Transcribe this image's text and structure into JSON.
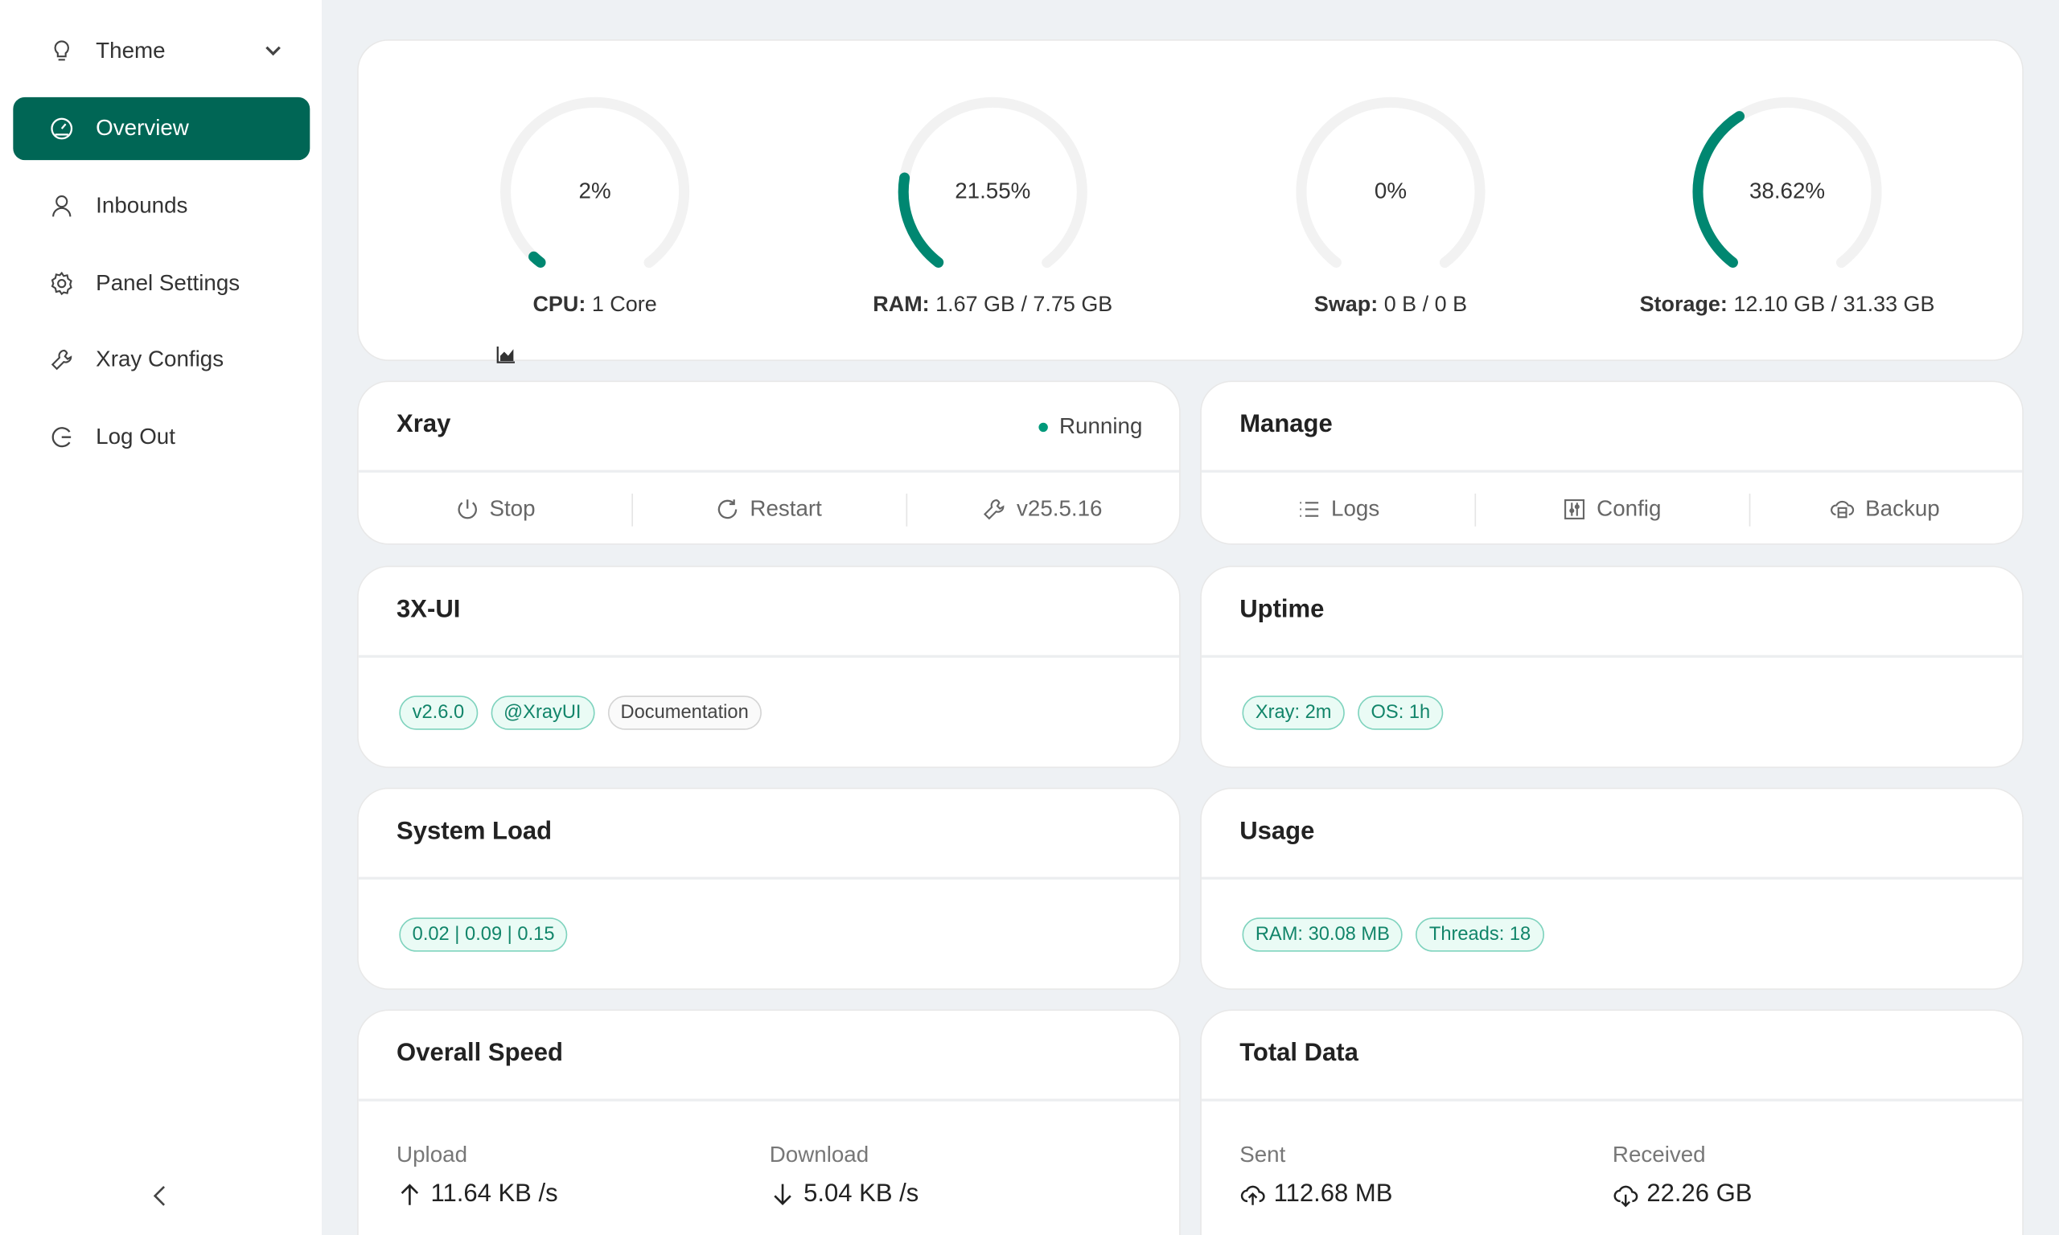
{
  "sidebar": {
    "items": [
      {
        "label": "Theme",
        "icon": "bulb-icon"
      },
      {
        "label": "Overview",
        "icon": "dashboard-icon",
        "active": true
      },
      {
        "label": "Inbounds",
        "icon": "user-icon"
      },
      {
        "label": "Panel Settings",
        "icon": "gear-icon"
      },
      {
        "label": "Xray Configs",
        "icon": "tool-icon"
      },
      {
        "label": "Log Out",
        "icon": "logout-icon"
      }
    ],
    "collapse_icon": "chevron-left-icon"
  },
  "colors": {
    "accent": "#006655",
    "gauge": "#008771",
    "track": "#f2f2f2"
  },
  "gauges": [
    {
      "percent": 2,
      "label": "2%",
      "key": "CPU:",
      "value": "1 Core"
    },
    {
      "percent": 21.55,
      "label": "21.55%",
      "key": "RAM:",
      "value": "1.67 GB / 7.75 GB"
    },
    {
      "percent": 0,
      "label": "0%",
      "key": "Swap:",
      "value": "0 B / 0 B"
    },
    {
      "percent": 38.62,
      "label": "38.62%",
      "key": "Storage:",
      "value": "12.10 GB / 31.33 GB"
    }
  ],
  "xray": {
    "title": "Xray",
    "status": "Running",
    "actions": [
      "Stop",
      "Restart",
      "v25.5.16"
    ]
  },
  "manage": {
    "title": "Manage",
    "actions": [
      "Logs",
      "Config",
      "Backup"
    ]
  },
  "panel": {
    "title": "3X-UI",
    "tags": [
      "v2.6.0",
      "@XrayUI",
      "Documentation"
    ]
  },
  "uptime": {
    "title": "Uptime",
    "tags": [
      "Xray: 2m",
      "OS: 1h"
    ]
  },
  "load": {
    "title": "System Load",
    "tags": [
      "0.02 | 0.09 | 0.15"
    ]
  },
  "usage": {
    "title": "Usage",
    "tags": [
      "RAM: 30.08 MB",
      "Threads: 18"
    ]
  },
  "speed": {
    "title": "Overall Speed",
    "upload_label": "Upload",
    "upload": "11.64 KB /s",
    "download_label": "Download",
    "download": "5.04 KB /s"
  },
  "total": {
    "title": "Total Data",
    "sent_label": "Sent",
    "sent": "112.68 MB",
    "received_label": "Received",
    "received": "22.26 GB"
  }
}
